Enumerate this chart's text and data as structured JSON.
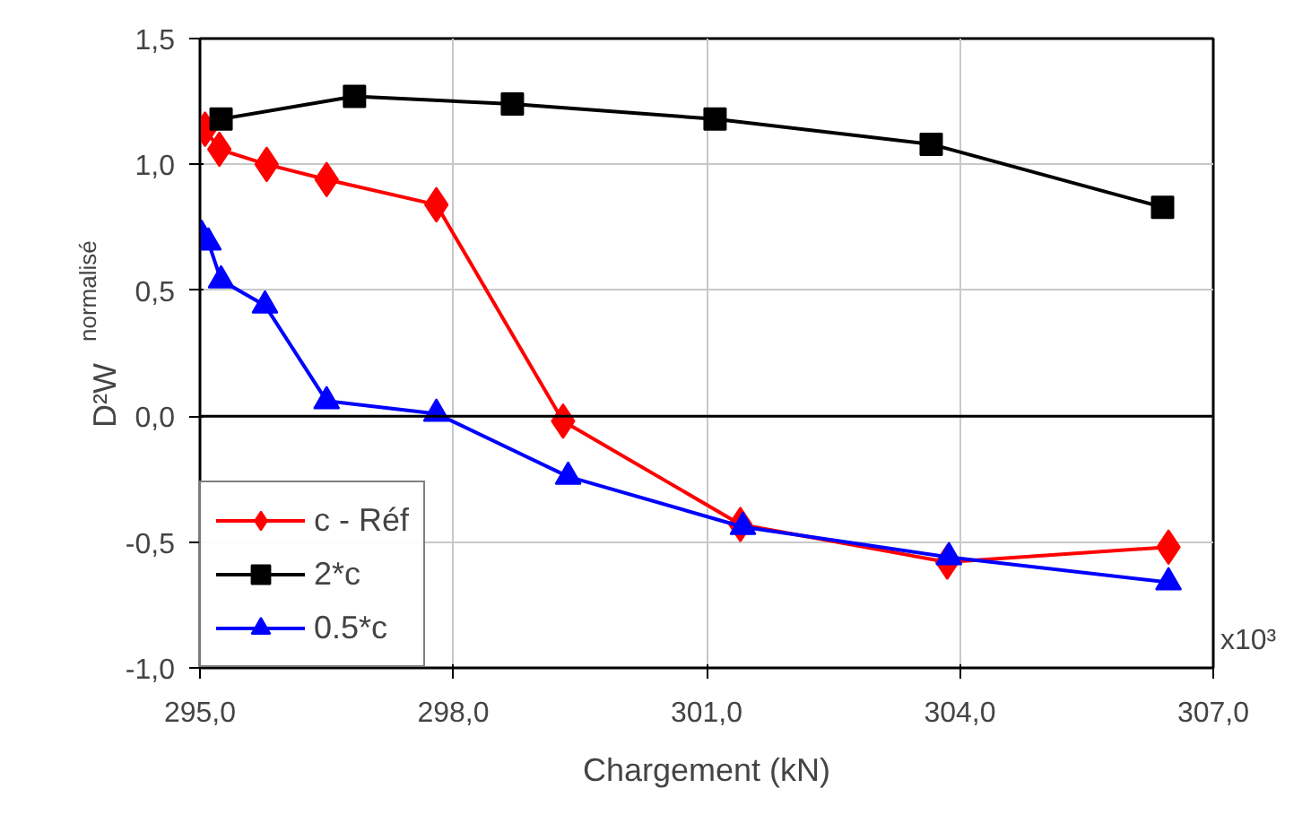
{
  "chart_data": {
    "type": "line",
    "xlabel": "Chargement (kN)",
    "ylabel": "D²W$_{normalisé}$",
    "annotations": [
      "x10³"
    ],
    "xlim": [
      295,
      307
    ],
    "ylim": [
      -1,
      1.5
    ],
    "xticks": [
      {
        "value": 295,
        "label": "295,0"
      },
      {
        "value": 298,
        "label": "298,0"
      },
      {
        "value": 301,
        "label": "301,0"
      },
      {
        "value": 304,
        "label": "304,0"
      },
      {
        "value": 307,
        "label": "307,0"
      }
    ],
    "yticks": [
      {
        "value": -1,
        "label": "-1,0"
      },
      {
        "value": -0.5,
        "label": "-0,5"
      },
      {
        "value": 0,
        "label": "0,0"
      },
      {
        "value": 0.5,
        "label": "0,5"
      },
      {
        "value": 1,
        "label": "1,0"
      },
      {
        "value": 1.5,
        "label": "1,5"
      }
    ],
    "grid": true,
    "legend": "bottom left",
    "line_style": "solid",
    "ref_lines": [
      {
        "axis": "y",
        "value": 0,
        "color": "#000000"
      }
    ],
    "series": [
      {
        "name": "c - Réf",
        "color": "#ff0000",
        "marker": "diamond",
        "x": [
          295.06,
          295.23,
          295.79,
          296.5,
          297.8,
          299.3,
          301.4,
          303.85,
          306.47
        ],
        "values": [
          1.14,
          1.06,
          1.0,
          0.94,
          0.84,
          -0.02,
          -0.43,
          -0.58,
          -0.52
        ]
      },
      {
        "name": "2*c",
        "color": "#000000",
        "marker": "square",
        "x": [
          295.25,
          296.83,
          298.7,
          301.1,
          303.66,
          306.4
        ],
        "values": [
          1.18,
          1.27,
          1.24,
          1.18,
          1.08,
          0.83
        ]
      },
      {
        "name": "0.5*c",
        "color": "#0000ff",
        "marker": "triangle",
        "x": [
          295.02,
          295.1,
          295.25,
          295.77,
          296.5,
          297.8,
          299.36,
          301.43,
          303.87,
          306.47
        ],
        "values": [
          0.72,
          0.69,
          0.54,
          0.44,
          0.06,
          0.01,
          -0.24,
          -0.44,
          -0.56,
          -0.66
        ]
      }
    ]
  }
}
